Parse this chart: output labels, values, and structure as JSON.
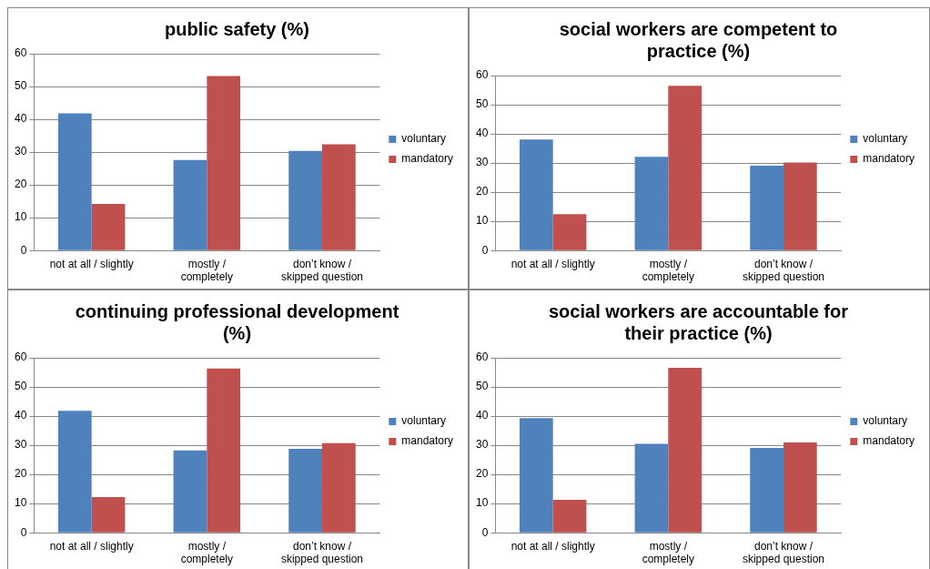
{
  "chart_data": [
    {
      "type": "bar",
      "title": "public safety (%)",
      "categories": [
        "not at all / slightly",
        "mostly / completely",
        "don’t know / skipped question"
      ],
      "series": [
        {
          "name": "voluntary",
          "color": "#4f81bd",
          "values": [
            41.8,
            27.6,
            30.4
          ]
        },
        {
          "name": "mandatory",
          "color": "#c0504d",
          "values": [
            14.2,
            53.2,
            32.4
          ]
        }
      ],
      "ylim": [
        0,
        60
      ],
      "yticks": [
        0,
        10,
        20,
        30,
        40,
        50,
        60
      ],
      "grid": "y",
      "legend": "right"
    },
    {
      "type": "bar",
      "title": "social workers are competent to practice (%)",
      "categories": [
        "not at all / slightly",
        "mostly / completely",
        "don’t know / skipped question"
      ],
      "series": [
        {
          "name": "voluntary",
          "color": "#4f81bd",
          "values": [
            38.1,
            32.1,
            29.1
          ]
        },
        {
          "name": "mandatory",
          "color": "#c0504d",
          "values": [
            12.5,
            56.5,
            30.2
          ]
        }
      ],
      "ylim": [
        0,
        60
      ],
      "yticks": [
        0,
        10,
        20,
        30,
        40,
        50,
        60
      ],
      "grid": "y",
      "legend": "right"
    },
    {
      "type": "bar",
      "title": "continuing professional development (%)",
      "categories": [
        "not at all / slightly",
        "mostly / completely",
        "don’t know / skipped question"
      ],
      "series": [
        {
          "name": "voluntary",
          "color": "#4f81bd",
          "values": [
            41.8,
            28.2,
            28.8
          ]
        },
        {
          "name": "mandatory",
          "color": "#c0504d",
          "values": [
            12.2,
            56.3,
            30.7
          ]
        }
      ],
      "ylim": [
        0,
        60
      ],
      "yticks": [
        0,
        10,
        20,
        30,
        40,
        50,
        60
      ],
      "grid": "y",
      "legend": "right"
    },
    {
      "type": "bar",
      "title": "social workers are accountable for their practice (%)",
      "categories": [
        "not at all / slightly",
        "mostly / completely",
        "don’t know / skipped question"
      ],
      "series": [
        {
          "name": "voluntary",
          "color": "#4f81bd",
          "values": [
            39.3,
            30.5,
            29.1
          ]
        },
        {
          "name": "mandatory",
          "color": "#c0504d",
          "values": [
            11.3,
            56.6,
            31.0
          ]
        }
      ],
      "ylim": [
        0,
        60
      ],
      "yticks": [
        0,
        10,
        20,
        30,
        40,
        50,
        60
      ],
      "grid": "y",
      "legend": "right"
    }
  ]
}
